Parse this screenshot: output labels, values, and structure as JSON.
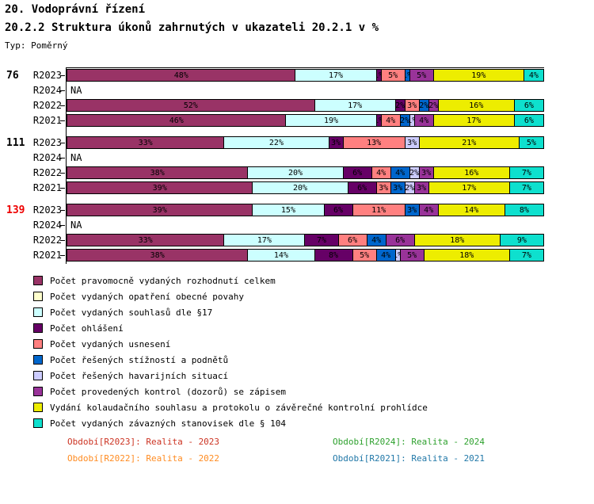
{
  "title": "20. Vodoprávní řízení",
  "subtitle": "20.2.2 Struktura úkonů zahrnutých v ukazateli 20.2.1 v %",
  "type_label": "Typ: Poměrný",
  "na_label": "NA",
  "legend": {
    "items": [
      {
        "label": "Počet pravomocně vydaných rozhodnutí celkem",
        "color": "#993366"
      },
      {
        "label": "Počet vydaných opatření obecné povahy",
        "color": "#FFFFCC"
      },
      {
        "label": "Počet vydaných souhlasů dle §17",
        "color": "#CCFFFF"
      },
      {
        "label": "Počet ohlášení",
        "color": "#660066"
      },
      {
        "label": "Počet vydaných usnesení",
        "color": "#FF8080"
      },
      {
        "label": "Počet řešených stížností a podnětů",
        "color": "#0066CC"
      },
      {
        "label": "Počet řešených havarijních situací",
        "color": "#CCCCFF"
      },
      {
        "label": "Počet provedených kontrol (dozorů) se zápisem",
        "color": "#993399"
      },
      {
        "label": "Vydání kolaudačního souhlasu a protokolu o závěrečné kontrolní prohlídce",
        "color": "#EDED00"
      },
      {
        "label": "Počet vydaných závazných stanovisek dle § 104",
        "color": "#0EE0CE"
      }
    ]
  },
  "chart_data": {
    "type": "bar",
    "orientation": "horizontal",
    "stacked": true,
    "value_unit": "%",
    "x_axis": {
      "min": 0,
      "max": 100,
      "unit": "%",
      "ticks_visible": false
    },
    "legend_position": "bottom",
    "series": [
      {
        "name": "Počet pravomocně vydaných rozhodnutí celkem",
        "color": "#993366"
      },
      {
        "name": "Počet vydaných opatření obecné povahy",
        "color": "#FFFFCC"
      },
      {
        "name": "Počet vydaných souhlasů dle §17",
        "color": "#CCFFFF"
      },
      {
        "name": "Počet ohlášení",
        "color": "#660066"
      },
      {
        "name": "Počet vydaných usnesení",
        "color": "#FF8080"
      },
      {
        "name": "Počet řešených stížností a podnětů",
        "color": "#0066CC"
      },
      {
        "name": "Počet řešených havarijních situací",
        "color": "#CCCCFF"
      },
      {
        "name": "Počet provedených kontrol (dozorů) se zápisem",
        "color": "#993399"
      },
      {
        "name": "Vydání kolaudačního souhlasu a protokolu o závěrečné kontrolní prohlídce",
        "color": "#EDED00"
      },
      {
        "name": "Počet vydaných závazných stanovisek dle § 104",
        "color": "#0EE0CE"
      }
    ],
    "groups": [
      {
        "label": "76",
        "label_color": "#000000",
        "rows": [
          {
            "period": "R2023",
            "na": false,
            "values": [
              48,
              0,
              17,
              1,
              5,
              1,
              0,
              5,
              19,
              4
            ]
          },
          {
            "period": "R2024",
            "na": true,
            "values": null
          },
          {
            "period": "R2022",
            "na": false,
            "values": [
              52,
              0,
              17,
              2,
              3,
              2,
              0,
              2,
              16,
              6
            ]
          },
          {
            "period": "R2021",
            "na": false,
            "values": [
              46,
              0,
              19,
              1,
              4,
              2,
              1,
              4,
              17,
              6
            ]
          }
        ]
      },
      {
        "label": "111",
        "label_color": "#000000",
        "rows": [
          {
            "period": "R2023",
            "na": false,
            "values": [
              33,
              0,
              22,
              3,
              13,
              0,
              3,
              0,
              21,
              5
            ]
          },
          {
            "period": "R2024",
            "na": true,
            "values": null
          },
          {
            "period": "R2022",
            "na": false,
            "values": [
              38,
              0,
              20,
              6,
              4,
              4,
              2,
              3,
              16,
              7
            ]
          },
          {
            "period": "R2021",
            "na": false,
            "values": [
              39,
              0,
              20,
              6,
              3,
              3,
              2,
              3,
              17,
              7
            ]
          }
        ]
      },
      {
        "label": "139",
        "label_color": "#EE0000",
        "rows": [
          {
            "period": "R2023",
            "na": false,
            "values": [
              39,
              0,
              15,
              6,
              11,
              3,
              0,
              4,
              14,
              8
            ]
          },
          {
            "period": "R2024",
            "na": true,
            "values": null
          },
          {
            "period": "R2022",
            "na": false,
            "values": [
              33,
              0,
              17,
              7,
              6,
              4,
              0,
              6,
              18,
              9
            ]
          },
          {
            "period": "R2021",
            "na": false,
            "values": [
              38,
              0,
              14,
              8,
              5,
              4,
              1,
              5,
              18,
              7
            ]
          }
        ]
      }
    ]
  },
  "footer": {
    "items": [
      {
        "label": "Období[R2023]: Realita - 2023",
        "color": "#CC3322"
      },
      {
        "label": "Období[R2024]: Realita - 2024",
        "color": "#2EA12E"
      },
      {
        "label": "Období[R2022]: Realita - 2022",
        "color": "#FF8C22"
      },
      {
        "label": "Období[R2021]: Realita - 2021",
        "color": "#2178A8"
      }
    ]
  }
}
